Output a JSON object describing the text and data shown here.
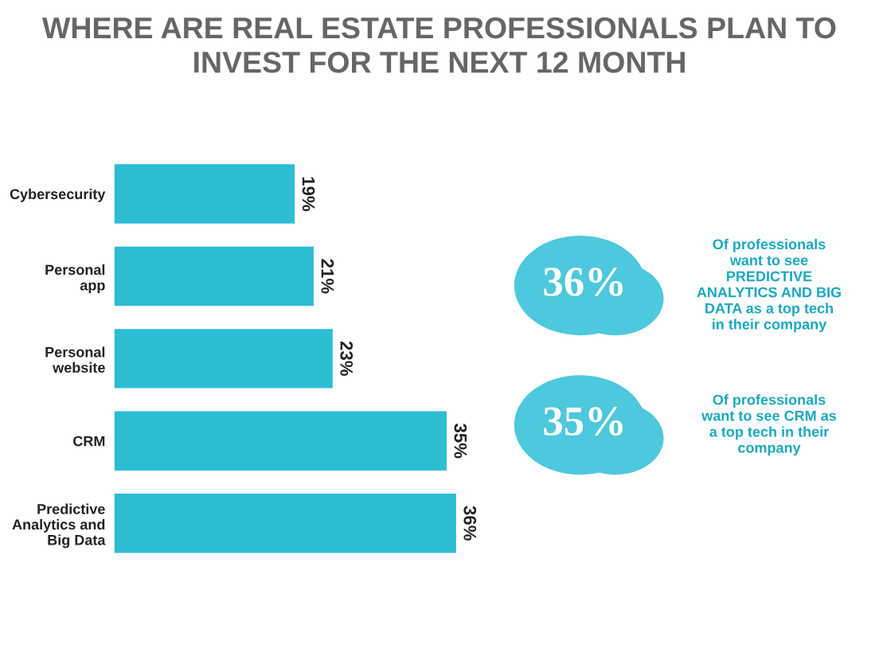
{
  "chart_data": {
    "type": "bar",
    "orientation": "horizontal",
    "title": "WHERE ARE REAL ESTATE PROFESSIONALS PLAN TO\nINVEST FOR THE NEXT 12 MONTH",
    "categories": [
      "Cybersecurity",
      "Personal\napp",
      "Personal\nwebsite",
      "CRM",
      "Predictive\nAnalytics and\nBig Data"
    ],
    "values": [
      19,
      21,
      23,
      35,
      36
    ],
    "value_labels": [
      "19%",
      "21%",
      "23%",
      "35%",
      "36%"
    ],
    "color": "#2cbdd3",
    "annotations": [
      "36%",
      "Of professionals\nwant to see\nPREDICTIVE\nANALYTICS AND BIG\nDATA as a top tech\nin their company",
      "35%",
      "Of professionals\nwant to see CRM as\na top tech in their\ncompany"
    ],
    "grid": false,
    "legend": false
  }
}
